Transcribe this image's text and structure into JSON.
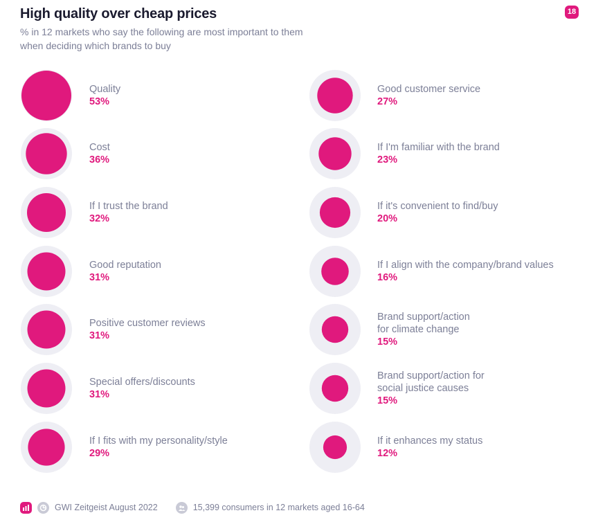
{
  "header": {
    "title": "High quality over cheap prices",
    "subtitle": "% in 12 markets who say the following are most important to them when deciding which brands to buy",
    "page_number": "18"
  },
  "footer": {
    "source": "GWI Zeitgeist August 2022",
    "sample": "15,399 consumers in 12 markets aged 16-64"
  },
  "colors": {
    "accent": "#e0197d",
    "bubble_bg": "#eeeef4",
    "label": "#7c7f97",
    "title": "#1a1a2e"
  },
  "chart_data": {
    "type": "bubble",
    "title": "High quality over cheap prices",
    "unit": "%",
    "series": [
      {
        "name": "left",
        "items": [
          {
            "label": [
              "Quality"
            ],
            "value": 53
          },
          {
            "label": [
              "Cost"
            ],
            "value": 36
          },
          {
            "label": [
              "If I trust the brand"
            ],
            "value": 32
          },
          {
            "label": [
              "Good reputation"
            ],
            "value": 31
          },
          {
            "label": [
              "Positive customer reviews"
            ],
            "value": 31
          },
          {
            "label": [
              "Special offers/discounts"
            ],
            "value": 31
          },
          {
            "label": [
              "If I fits with my personality/style"
            ],
            "value": 29
          }
        ]
      },
      {
        "name": "right",
        "items": [
          {
            "label": [
              "Good customer service"
            ],
            "value": 27
          },
          {
            "label": [
              "If I'm familiar with the brand"
            ],
            "value": 23
          },
          {
            "label": [
              "If it's convenient to find/buy"
            ],
            "value": 20
          },
          {
            "label": [
              "If I align with the company/brand values"
            ],
            "value": 16
          },
          {
            "label": [
              "Brand support/action",
              "for climate change"
            ],
            "value": 15
          },
          {
            "label": [
              "Brand support/action for",
              "social justice causes"
            ],
            "value": 15
          },
          {
            "label": [
              "If it enhances my status"
            ],
            "value": 12
          }
        ]
      }
    ]
  }
}
